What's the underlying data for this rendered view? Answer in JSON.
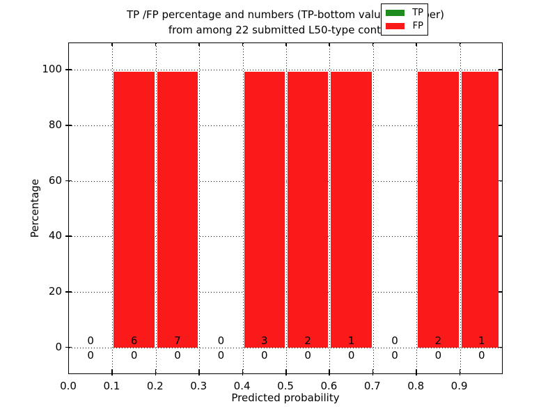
{
  "title": {
    "line1": "TP /FP percentage and numbers (TP-bottom value, FP-upper)",
    "line2": "from among 22 submitted L50-type contacts"
  },
  "axes": {
    "xlabel": "Predicted probability",
    "ylabel": "Percentage",
    "x_tick_labels": [
      "0.0",
      "0.1",
      "0.2",
      "0.3",
      "0.4",
      "0.5",
      "0.6",
      "0.7",
      "0.8",
      "0.9"
    ],
    "y_tick_labels": [
      "0",
      "20",
      "40",
      "60",
      "80",
      "100"
    ],
    "grid_style": "dotted"
  },
  "legend": {
    "position": "upper right",
    "entries": [
      {
        "label": "TP",
        "color": "#1e8c1e"
      },
      {
        "label": "FP",
        "color": "#fa1a1a"
      }
    ]
  },
  "chart_data": {
    "type": "bar",
    "stacked": true,
    "title": "TP /FP percentage and numbers (TP-bottom value, FP-upper) from among 22 submitted L50-type contacts",
    "xlabel": "Predicted probability",
    "ylabel": "Percentage",
    "xlim": [
      0.0,
      1.0
    ],
    "ylim": [
      -10,
      110
    ],
    "total_contacts": 22,
    "bin_edges": [
      0.0,
      0.1,
      0.2,
      0.3,
      0.4,
      0.5,
      0.6,
      0.7,
      0.8,
      0.9,
      1.0
    ],
    "bin_centers": [
      0.05,
      0.15,
      0.25,
      0.35,
      0.45,
      0.55,
      0.65,
      0.75,
      0.85,
      0.95
    ],
    "series": [
      {
        "name": "TP",
        "color": "#1e8c1e",
        "percentages": [
          0,
          0,
          0,
          0,
          0,
          0,
          0,
          0,
          0,
          0
        ],
        "counts": [
          0,
          0,
          0,
          0,
          0,
          0,
          0,
          0,
          0,
          0
        ]
      },
      {
        "name": "FP",
        "color": "#fa1a1a",
        "percentages": [
          0,
          100,
          100,
          0,
          100,
          100,
          100,
          0,
          100,
          100
        ],
        "counts": [
          0,
          6,
          7,
          0,
          3,
          2,
          1,
          0,
          2,
          1
        ]
      }
    ],
    "count_label_rows": {
      "bottom_row": "TP counts",
      "upper_row": "FP counts"
    }
  }
}
